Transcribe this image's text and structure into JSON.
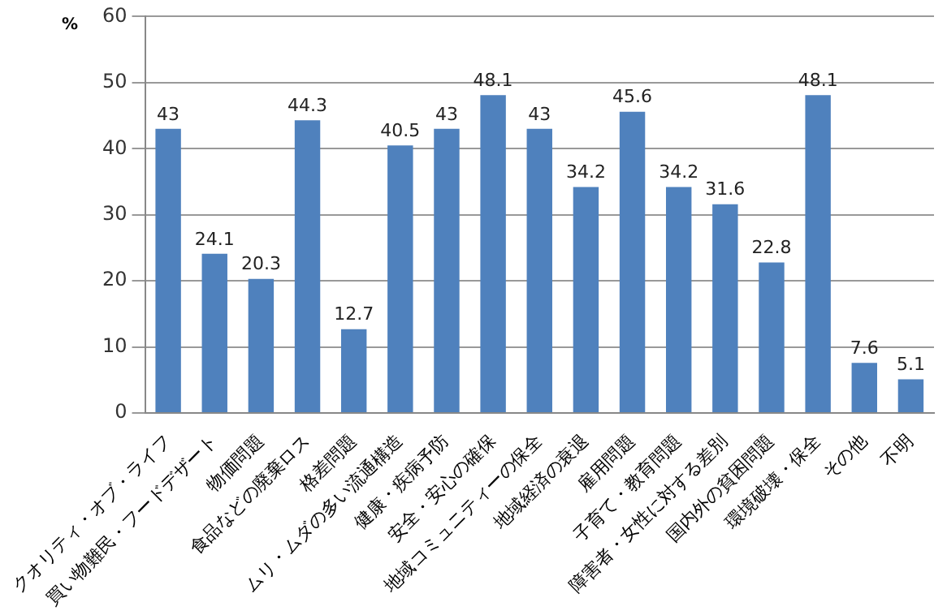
{
  "chart_data": {
    "type": "bar",
    "ylabel": "%",
    "categories": [
      "クオリティ・オブ・ライフ",
      "買い物難民・フードデザート",
      "物価問題",
      "食品などの廃棄ロス",
      "格差問題",
      "ムリ・ムダの多い流通構造",
      "健康・疾病予防",
      "安全・安心の確保",
      "地域コミュニティーの保全",
      "地域経済の衰退",
      "雇用問題",
      "子育て・教育問題",
      "障害者・女性に対する差別",
      "国内外の貧困問題",
      "環境破壊・保全",
      "その他",
      "不明"
    ],
    "values": [
      43,
      24.1,
      20.3,
      44.3,
      12.7,
      40.5,
      43,
      48.1,
      43,
      34.2,
      45.6,
      34.2,
      31.6,
      22.8,
      48.1,
      7.6,
      5.1
    ],
    "color": "#4f81bd",
    "ylim": [
      0,
      60
    ],
    "yticks": [
      0,
      10,
      20,
      30,
      40,
      50,
      60
    ],
    "grid": "y",
    "legend": false,
    "data_labels": true
  }
}
